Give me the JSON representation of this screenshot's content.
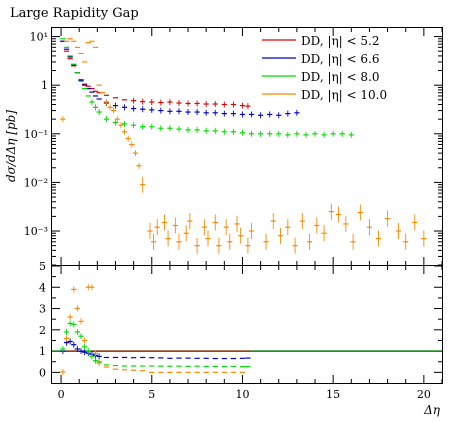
{
  "chart_data": [
    {
      "type": "scatter",
      "title": "Large Rapidity Gap",
      "xlabel": "",
      "ylabel": "dσ/dΔη [pb]",
      "xlim": [
        -0.5,
        21
      ],
      "ylim": [
        0.0002,
        15
      ],
      "yscale": "log",
      "y_ticks": [
        {
          "value": 0.001,
          "label": "10⁻³"
        },
        {
          "value": 0.01,
          "label": "10⁻²"
        },
        {
          "value": 0.1,
          "label": "10⁻¹"
        },
        {
          "value": 1,
          "label": "1"
        },
        {
          "value": 10,
          "label": "10¹"
        }
      ],
      "legend_position": "top-right",
      "series": [
        {
          "name": "DD, |η| < 5.2",
          "color": "#e00000",
          "x": [
            0.1,
            0.3,
            0.5,
            0.7,
            0.9,
            1.1,
            1.3,
            1.5,
            1.7,
            1.9,
            2.1,
            2.5,
            3.0,
            3.5,
            4.0,
            4.5,
            5.0,
            5.5,
            6.0,
            6.5,
            7.0,
            7.5,
            8.0,
            8.5,
            9.0,
            9.5,
            10.0,
            10.3
          ],
          "y": [
            8.0,
            5.0,
            3.5,
            2.5,
            1.8,
            1.3,
            1.05,
            0.95,
            0.85,
            0.75,
            0.7,
            0.62,
            0.55,
            0.5,
            0.48,
            0.46,
            0.45,
            0.44,
            0.45,
            0.43,
            0.42,
            0.42,
            0.41,
            0.41,
            0.4,
            0.4,
            0.38,
            0.37
          ]
        },
        {
          "name": "DD, |η| < 6.6",
          "color": "#0000d0",
          "x": [
            0.1,
            0.3,
            0.5,
            0.7,
            0.9,
            1.1,
            1.3,
            1.5,
            1.7,
            1.9,
            2.1,
            2.5,
            3.0,
            3.5,
            4.0,
            4.5,
            5.0,
            5.5,
            6.0,
            6.5,
            7.0,
            7.5,
            8.0,
            8.5,
            9.0,
            9.5,
            10.0,
            10.5,
            11.0,
            11.5,
            12.0,
            12.5,
            13.0
          ],
          "y": [
            8.0,
            5.5,
            3.8,
            2.6,
            1.8,
            1.25,
            1.0,
            0.85,
            0.72,
            0.6,
            0.52,
            0.43,
            0.38,
            0.35,
            0.33,
            0.32,
            0.31,
            0.3,
            0.29,
            0.29,
            0.28,
            0.28,
            0.27,
            0.27,
            0.26,
            0.26,
            0.25,
            0.25,
            0.24,
            0.25,
            0.24,
            0.26,
            0.27
          ]
        },
        {
          "name": "DD, |η| < 8.0",
          "color": "#00dd00",
          "x": [
            0.1,
            0.3,
            0.5,
            0.7,
            0.9,
            1.1,
            1.3,
            1.5,
            1.7,
            1.9,
            2.1,
            2.5,
            3.0,
            3.5,
            4.0,
            4.5,
            5.0,
            5.5,
            6.0,
            6.5,
            7.0,
            7.5,
            8.0,
            8.5,
            9.0,
            9.5,
            10.0,
            10.5,
            11.0,
            11.5,
            12.0,
            12.5,
            13.0,
            13.5,
            14.0,
            14.5,
            15.0,
            15.5,
            16.0
          ],
          "y": [
            9.0,
            6.0,
            4.0,
            2.7,
            1.8,
            1.2,
            0.85,
            0.6,
            0.45,
            0.35,
            0.28,
            0.2,
            0.17,
            0.16,
            0.15,
            0.14,
            0.14,
            0.13,
            0.13,
            0.125,
            0.12,
            0.12,
            0.115,
            0.115,
            0.11,
            0.11,
            0.105,
            0.1,
            0.1,
            0.1,
            0.1,
            0.095,
            0.1,
            0.095,
            0.1,
            0.095,
            0.1,
            0.1,
            0.095
          ]
        },
        {
          "name": "DD, |η| < 10.0",
          "color": "#ff8800",
          "x": [
            0.1,
            0.3,
            0.5,
            0.7,
            0.9,
            1.1,
            1.3,
            1.5,
            1.7,
            1.9,
            2.1,
            2.3,
            2.5,
            2.7,
            2.9,
            3.1,
            3.3,
            3.5,
            3.7,
            3.9,
            4.1,
            4.3,
            4.5,
            4.9,
            5.1,
            5.3,
            5.7,
            5.9,
            6.3,
            6.5,
            6.9,
            7.1,
            7.5,
            7.9,
            8.1,
            8.5,
            8.7,
            9.1,
            9.3,
            9.7,
            9.9,
            10.3,
            10.5,
            11.3,
            11.7,
            12.1,
            12.5,
            12.9,
            13.3,
            13.7,
            14.1,
            14.5,
            14.9,
            15.3,
            15.7,
            16.1,
            16.5,
            17.0,
            17.5,
            18.0,
            18.6,
            19.0,
            19.5,
            20.0
          ],
          "y": [
            0.2,
            8.0,
            9.0,
            8.0,
            6.0,
            4.5,
            3.0,
            7.5,
            8.0,
            6.0,
            1.0,
            0.7,
            0.45,
            0.35,
            0.3,
            0.2,
            0.15,
            0.11,
            0.08,
            0.06,
            0.04,
            0.022,
            0.009,
            0.001,
            0.0006,
            0.0012,
            0.0015,
            0.0007,
            0.0013,
            0.0006,
            0.0009,
            0.0016,
            0.0005,
            0.0012,
            0.0007,
            0.0015,
            0.0005,
            0.0012,
            0.0006,
            0.0014,
            0.0008,
            0.0005,
            0.001,
            0.0006,
            0.0016,
            0.0008,
            0.0012,
            0.0005,
            0.0016,
            0.0006,
            0.0013,
            0.0009,
            0.0025,
            0.0022,
            0.0014,
            0.0006,
            0.0024,
            0.0012,
            0.0007,
            0.0018,
            0.001,
            0.0006,
            0.0015,
            0.0007
          ]
        }
      ]
    },
    {
      "type": "line",
      "xlabel": "Δη",
      "ylabel": "",
      "xlim": [
        -0.5,
        21
      ],
      "ylim": [
        -0.5,
        5
      ],
      "x_ticks": [
        0,
        5,
        10,
        15,
        20
      ],
      "y_ticks": [
        0,
        1,
        2,
        3,
        4,
        5
      ],
      "reference_line": {
        "value": 1,
        "color": "#008000"
      },
      "series": [
        {
          "name": "DD, |η| < 5.2",
          "color": "#e00000",
          "x": [
            0.1,
            0.3,
            0.5,
            0.7,
            0.9,
            1.1,
            1.3,
            1.5,
            1.7,
            1.9,
            2.1,
            2.5,
            3.0,
            3.5,
            4.0,
            4.5,
            5.0,
            5.5,
            6.0,
            6.5,
            7.0,
            7.5,
            8.0,
            8.5,
            9.0,
            9.5,
            10.0,
            10.3
          ],
          "y": [
            1,
            1,
            1,
            1,
            1,
            1,
            1,
            1,
            1,
            1,
            1,
            1,
            1,
            1,
            1,
            1,
            1,
            1,
            1,
            1,
            1,
            1,
            1,
            1,
            1,
            1,
            1,
            1
          ]
        },
        {
          "name": "DD, |η| < 6.6",
          "color": "#0000d0",
          "x": [
            0.1,
            0.3,
            0.5,
            0.7,
            0.9,
            1.1,
            1.3,
            1.5,
            1.7,
            1.9,
            2.1,
            2.5,
            3.0,
            3.5,
            4.0,
            4.5,
            5.0,
            5.5,
            6.0,
            6.5,
            7.0,
            7.5,
            8.0,
            8.5,
            9.0,
            9.5,
            10.0,
            10.3
          ],
          "y": [
            1.0,
            1.4,
            1.45,
            1.3,
            1.1,
            1.0,
            0.95,
            0.9,
            0.85,
            0.8,
            0.75,
            0.7,
            0.7,
            0.7,
            0.69,
            0.7,
            0.69,
            0.68,
            0.66,
            0.67,
            0.67,
            0.66,
            0.66,
            0.65,
            0.65,
            0.65,
            0.66,
            0.67
          ]
        },
        {
          "name": "DD, |η| < 8.0",
          "color": "#00dd00",
          "x": [
            0.1,
            0.3,
            0.5,
            0.7,
            0.9,
            1.1,
            1.3,
            1.5,
            1.7,
            1.9,
            2.1,
            2.5,
            3.0,
            3.5,
            4.0,
            4.5,
            5.0,
            5.5,
            6.0,
            6.5,
            7.0,
            7.5,
            8.0,
            8.5,
            9.0,
            9.5,
            10.0,
            10.3
          ],
          "y": [
            1.1,
            1.9,
            2.3,
            2.25,
            1.9,
            1.7,
            1.2,
            1.0,
            0.75,
            0.55,
            0.45,
            0.35,
            0.32,
            0.3,
            0.3,
            0.3,
            0.3,
            0.29,
            0.29,
            0.29,
            0.28,
            0.29,
            0.28,
            0.28,
            0.27,
            0.28,
            0.27,
            0.27
          ]
        },
        {
          "name": "DD, |η| < 10.0",
          "color": "#ff8800",
          "x": [
            0.1,
            0.3,
            0.5,
            0.7,
            0.9,
            1.1,
            1.3,
            1.5,
            1.7,
            1.9,
            2.1,
            2.5,
            3.0,
            3.5,
            4.0,
            4.5,
            5.0,
            5.5,
            6.0,
            6.5,
            7.0,
            7.5,
            8.0,
            8.5,
            9.0,
            9.5,
            10.0
          ],
          "y": [
            0.02,
            1.6,
            2.6,
            3.9,
            3.0,
            2.4,
            1.5,
            4.0,
            4.0,
            0.9,
            0.5,
            0.25,
            0.15,
            0.12,
            0.1,
            0.08,
            0.0,
            0.0,
            0.0,
            0.0,
            0.0,
            0.0,
            0.0,
            0.0,
            0.0,
            0.0,
            0.0
          ]
        }
      ]
    }
  ]
}
